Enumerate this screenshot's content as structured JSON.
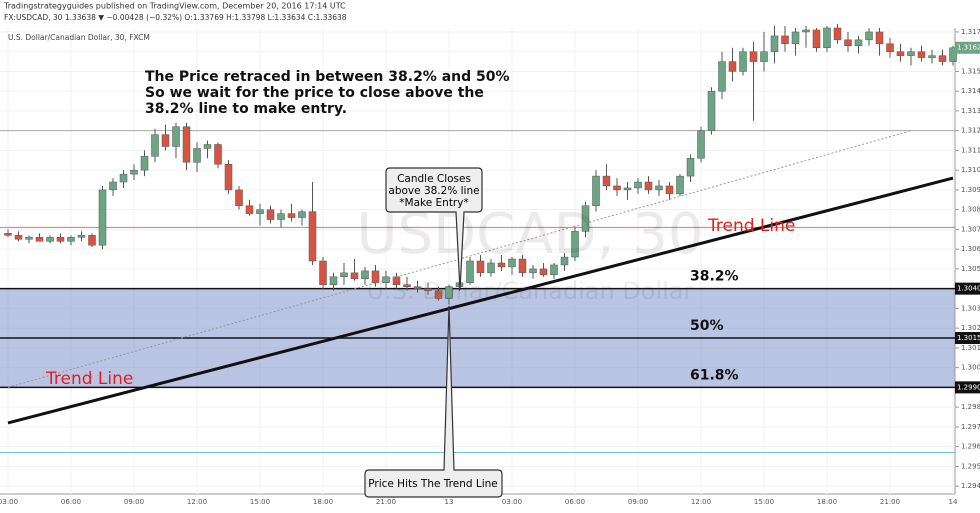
{
  "chart_data": {
    "type": "candlestick",
    "header_lines": [
      "Tradingstrategyguides published on TradingView.com, December 20, 2016 17:14 UTC",
      "FX:USDCAD, 30  1.33638 ▼ −0.00428 (−0.32%) O:1.33769 H:1.33798 L:1.33634 C:1.33638"
    ],
    "subtitle": "U.S. Dollar/Canadian Dollar, 30, FXCM",
    "watermark": [
      "USDCAD, 30",
      "U.S. Dollar/Canadian Dollar"
    ],
    "note_lines": [
      "The Price retraced in between 38.2% and 50%",
      "So we wait for the price to close above the",
      "38.2% line to make entry."
    ],
    "callouts": [
      [
        "Candle Closes",
        "above 38.2% line",
        "*Make Entry*"
      ],
      [
        "Price Hits The Trend Line"
      ]
    ],
    "trend_line_labels": [
      "Trend Line",
      "Trend Line"
    ],
    "up_color": "#6ba583",
    "down_color": "#d75442",
    "categories": [
      "03:00",
      null,
      null,
      null,
      null,
      null,
      "06:00",
      null,
      null,
      null,
      null,
      null,
      "09:00",
      null,
      null,
      null,
      null,
      null,
      "12:00",
      null,
      null,
      null,
      null,
      null,
      "15:00",
      null,
      null,
      null,
      null,
      null,
      "18:00",
      null,
      null,
      null,
      null,
      null,
      "21:00",
      null,
      null,
      null,
      null,
      null,
      "13",
      null,
      null,
      null,
      null,
      null,
      "03:00",
      null,
      null,
      null,
      null,
      null,
      "06:00",
      null,
      null,
      null,
      null,
      null,
      "09:00",
      null,
      null,
      null,
      null,
      null,
      "12:00",
      null,
      null,
      null,
      null,
      null,
      "15:00",
      null,
      null,
      null,
      null,
      null,
      "18:00",
      null,
      null,
      null,
      null,
      null,
      "21:00",
      null,
      null,
      null,
      null,
      null,
      "14"
    ],
    "open": [
      1.3068,
      1.3067,
      1.3065,
      1.3066,
      1.3064,
      1.3066,
      1.3064,
      1.3066,
      1.3067,
      1.3062,
      1.309,
      1.3094,
      1.3098,
      1.31,
      1.3107,
      1.3118,
      1.3112,
      1.3122,
      1.3104,
      1.3111,
      1.3113,
      1.3103,
      1.309,
      1.3082,
      1.3078,
      1.308,
      1.3075,
      1.3078,
      1.3076,
      1.3079,
      1.3054,
      1.3042,
      1.3046,
      1.3048,
      1.3045,
      1.3049,
      1.3043,
      1.3046,
      1.3042,
      1.3041,
      1.304,
      1.3039,
      1.3035,
      1.3041,
      1.3043,
      1.3054,
      1.3048,
      1.3053,
      1.3051,
      1.3055,
      1.3048,
      1.305,
      1.3047,
      1.3052,
      1.3056,
      1.3069,
      1.3082,
      1.3097,
      1.3092,
      1.309,
      1.3091,
      1.3094,
      1.309,
      1.3092,
      1.3088,
      1.3097,
      1.3106,
      1.312,
      1.314,
      1.3155,
      1.315,
      1.316,
      1.3155,
      1.316,
      1.3168,
      1.3164,
      1.317,
      1.3171,
      1.3162,
      1.3172,
      1.3166,
      1.3163,
      1.3166,
      1.317,
      1.3164,
      1.316,
      1.3158,
      1.316,
      1.3157,
      1.3158,
      1.3155
    ],
    "high": [
      1.307,
      1.3069,
      1.3067,
      1.3068,
      1.3067,
      1.3068,
      1.3067,
      1.3069,
      1.3068,
      1.3092,
      1.3096,
      1.31,
      1.3103,
      1.311,
      1.3121,
      1.3123,
      1.3124,
      1.3124,
      1.3114,
      1.3115,
      1.3114,
      1.3105,
      1.3092,
      1.3085,
      1.3083,
      1.3082,
      1.308,
      1.3083,
      1.308,
      1.3094,
      1.3056,
      1.3048,
      1.3053,
      1.3055,
      1.3051,
      1.3052,
      1.3049,
      1.3048,
      1.3046,
      1.3044,
      1.3043,
      1.3041,
      1.3042,
      1.3045,
      1.3056,
      1.3057,
      1.3055,
      1.3057,
      1.3056,
      1.3057,
      1.3052,
      1.3053,
      1.3053,
      1.3058,
      1.3071,
      1.3084,
      1.31,
      1.3103,
      1.3096,
      1.3094,
      1.3096,
      1.3097,
      1.3095,
      1.3094,
      1.3098,
      1.3108,
      1.3122,
      1.3142,
      1.316,
      1.3162,
      1.3162,
      1.3165,
      1.317,
      1.3173,
      1.3173,
      1.3172,
      1.3173,
      1.3172,
      1.3173,
      1.3174,
      1.317,
      1.3168,
      1.3172,
      1.3172,
      1.3167,
      1.3164,
      1.3162,
      1.3163,
      1.3161,
      1.3161,
      1.3163
    ],
    "low": [
      1.3066,
      1.3064,
      1.3063,
      1.3064,
      1.3063,
      1.3063,
      1.3062,
      1.3064,
      1.3061,
      1.306,
      1.3087,
      1.3091,
      1.3095,
      1.3097,
      1.3104,
      1.311,
      1.3106,
      1.31,
      1.3099,
      1.3106,
      1.3101,
      1.3088,
      1.308,
      1.3077,
      1.3072,
      1.3073,
      1.3071,
      1.3074,
      1.3072,
      1.3052,
      1.304,
      1.3039,
      1.3042,
      1.3044,
      1.3042,
      1.3041,
      1.304,
      1.304,
      1.3039,
      1.3038,
      1.3037,
      1.3034,
      1.3032,
      1.3039,
      1.3042,
      1.3046,
      1.3046,
      1.3049,
      1.3047,
      1.3046,
      1.3045,
      1.3046,
      1.3045,
      1.3049,
      1.3054,
      1.3066,
      1.3079,
      1.309,
      1.3087,
      1.3085,
      1.3088,
      1.3088,
      1.3087,
      1.3085,
      1.3087,
      1.3094,
      1.3104,
      1.3118,
      1.3136,
      1.3145,
      1.3148,
      1.3125,
      1.315,
      1.3154,
      1.316,
      1.3158,
      1.3162,
      1.316,
      1.316,
      1.3164,
      1.316,
      1.3159,
      1.3163,
      1.3158,
      1.3157,
      1.3155,
      1.3153,
      1.3155,
      1.3154,
      1.3153,
      1.3153
    ],
    "close": [
      1.3067,
      1.3065,
      1.3066,
      1.3064,
      1.3066,
      1.3064,
      1.3066,
      1.3067,
      1.3062,
      1.309,
      1.3094,
      1.3098,
      1.31,
      1.3107,
      1.3118,
      1.3112,
      1.3122,
      1.3104,
      1.3111,
      1.3113,
      1.3103,
      1.309,
      1.3082,
      1.3078,
      1.308,
      1.3075,
      1.3078,
      1.3076,
      1.3079,
      1.3054,
      1.3042,
      1.3046,
      1.3048,
      1.3045,
      1.3049,
      1.3043,
      1.3046,
      1.3042,
      1.3041,
      1.304,
      1.3039,
      1.3035,
      1.3041,
      1.3043,
      1.3054,
      1.3048,
      1.3053,
      1.3051,
      1.3055,
      1.3048,
      1.305,
      1.3047,
      1.3052,
      1.3056,
      1.3069,
      1.3082,
      1.3097,
      1.3092,
      1.309,
      1.3091,
      1.3094,
      1.309,
      1.3092,
      1.3088,
      1.3097,
      1.3106,
      1.312,
      1.314,
      1.3155,
      1.315,
      1.316,
      1.3155,
      1.316,
      1.3168,
      1.3164,
      1.317,
      1.3171,
      1.3162,
      1.3172,
      1.3166,
      1.3163,
      1.3166,
      1.317,
      1.3164,
      1.316,
      1.3158,
      1.316,
      1.3157,
      1.3158,
      1.3155,
      1.3162
    ],
    "last_price_label": "1.3162",
    "ylim": [
      1.2936,
      1.3172
    ],
    "yticks": [
      {
        "value": 1.294,
        "label": "1.2940"
      },
      {
        "value": 1.295,
        "label": "1.2950"
      },
      {
        "value": 1.296,
        "label": "1.2960"
      },
      {
        "value": 1.297,
        "label": "1.2970"
      },
      {
        "value": 1.298,
        "label": "1.2980"
      },
      {
        "value": 1.299,
        "label": "1.2990"
      },
      {
        "value": 1.3,
        "label": "1.3000"
      },
      {
        "value": 1.301,
        "label": "1.3010"
      },
      {
        "value": 1.302,
        "label": "1.3020"
      },
      {
        "value": 1.303,
        "label": "1.3030"
      },
      {
        "value": 1.304,
        "label": "1.3040"
      },
      {
        "value": 1.305,
        "label": "1.3050"
      },
      {
        "value": 1.306,
        "label": "1.3060"
      },
      {
        "value": 1.307,
        "label": "1.3070"
      },
      {
        "value": 1.308,
        "label": "1.3080"
      },
      {
        "value": 1.309,
        "label": "1.3090"
      },
      {
        "value": 1.31,
        "label": "1.3100"
      },
      {
        "value": 1.311,
        "label": "1.3110"
      },
      {
        "value": 1.312,
        "label": "1.3120"
      },
      {
        "value": 1.313,
        "label": "1.3130"
      },
      {
        "value": 1.314,
        "label": "1.3140"
      },
      {
        "value": 1.315,
        "label": "1.3150"
      },
      {
        "value": 1.316,
        "label": "1.3160"
      },
      {
        "value": 1.317,
        "label": "1.3170"
      }
    ],
    "fib_levels": {
      "labels": [
        "38.2%",
        "50%",
        "61.8%"
      ],
      "values": [
        1.304,
        1.3015,
        1.299
      ],
      "value_labels": [
        "1.3040",
        "1.3015",
        "1.2990"
      ],
      "color": "#8b9fd0"
    },
    "hlines": [
      {
        "value": 1.3071,
        "color": "#d9776b"
      },
      {
        "value": 1.312,
        "color": "#aaaaaa"
      },
      {
        "value": 1.2957,
        "color": "#74bde8"
      }
    ],
    "trend_line": {
      "start": [
        0,
        1.2972
      ],
      "end": [
        90,
        1.3096
      ],
      "color": "#111111"
    },
    "guide_line": {
      "start": [
        0,
        1.299
      ],
      "end": [
        86,
        1.312
      ],
      "color": "#999999"
    }
  }
}
